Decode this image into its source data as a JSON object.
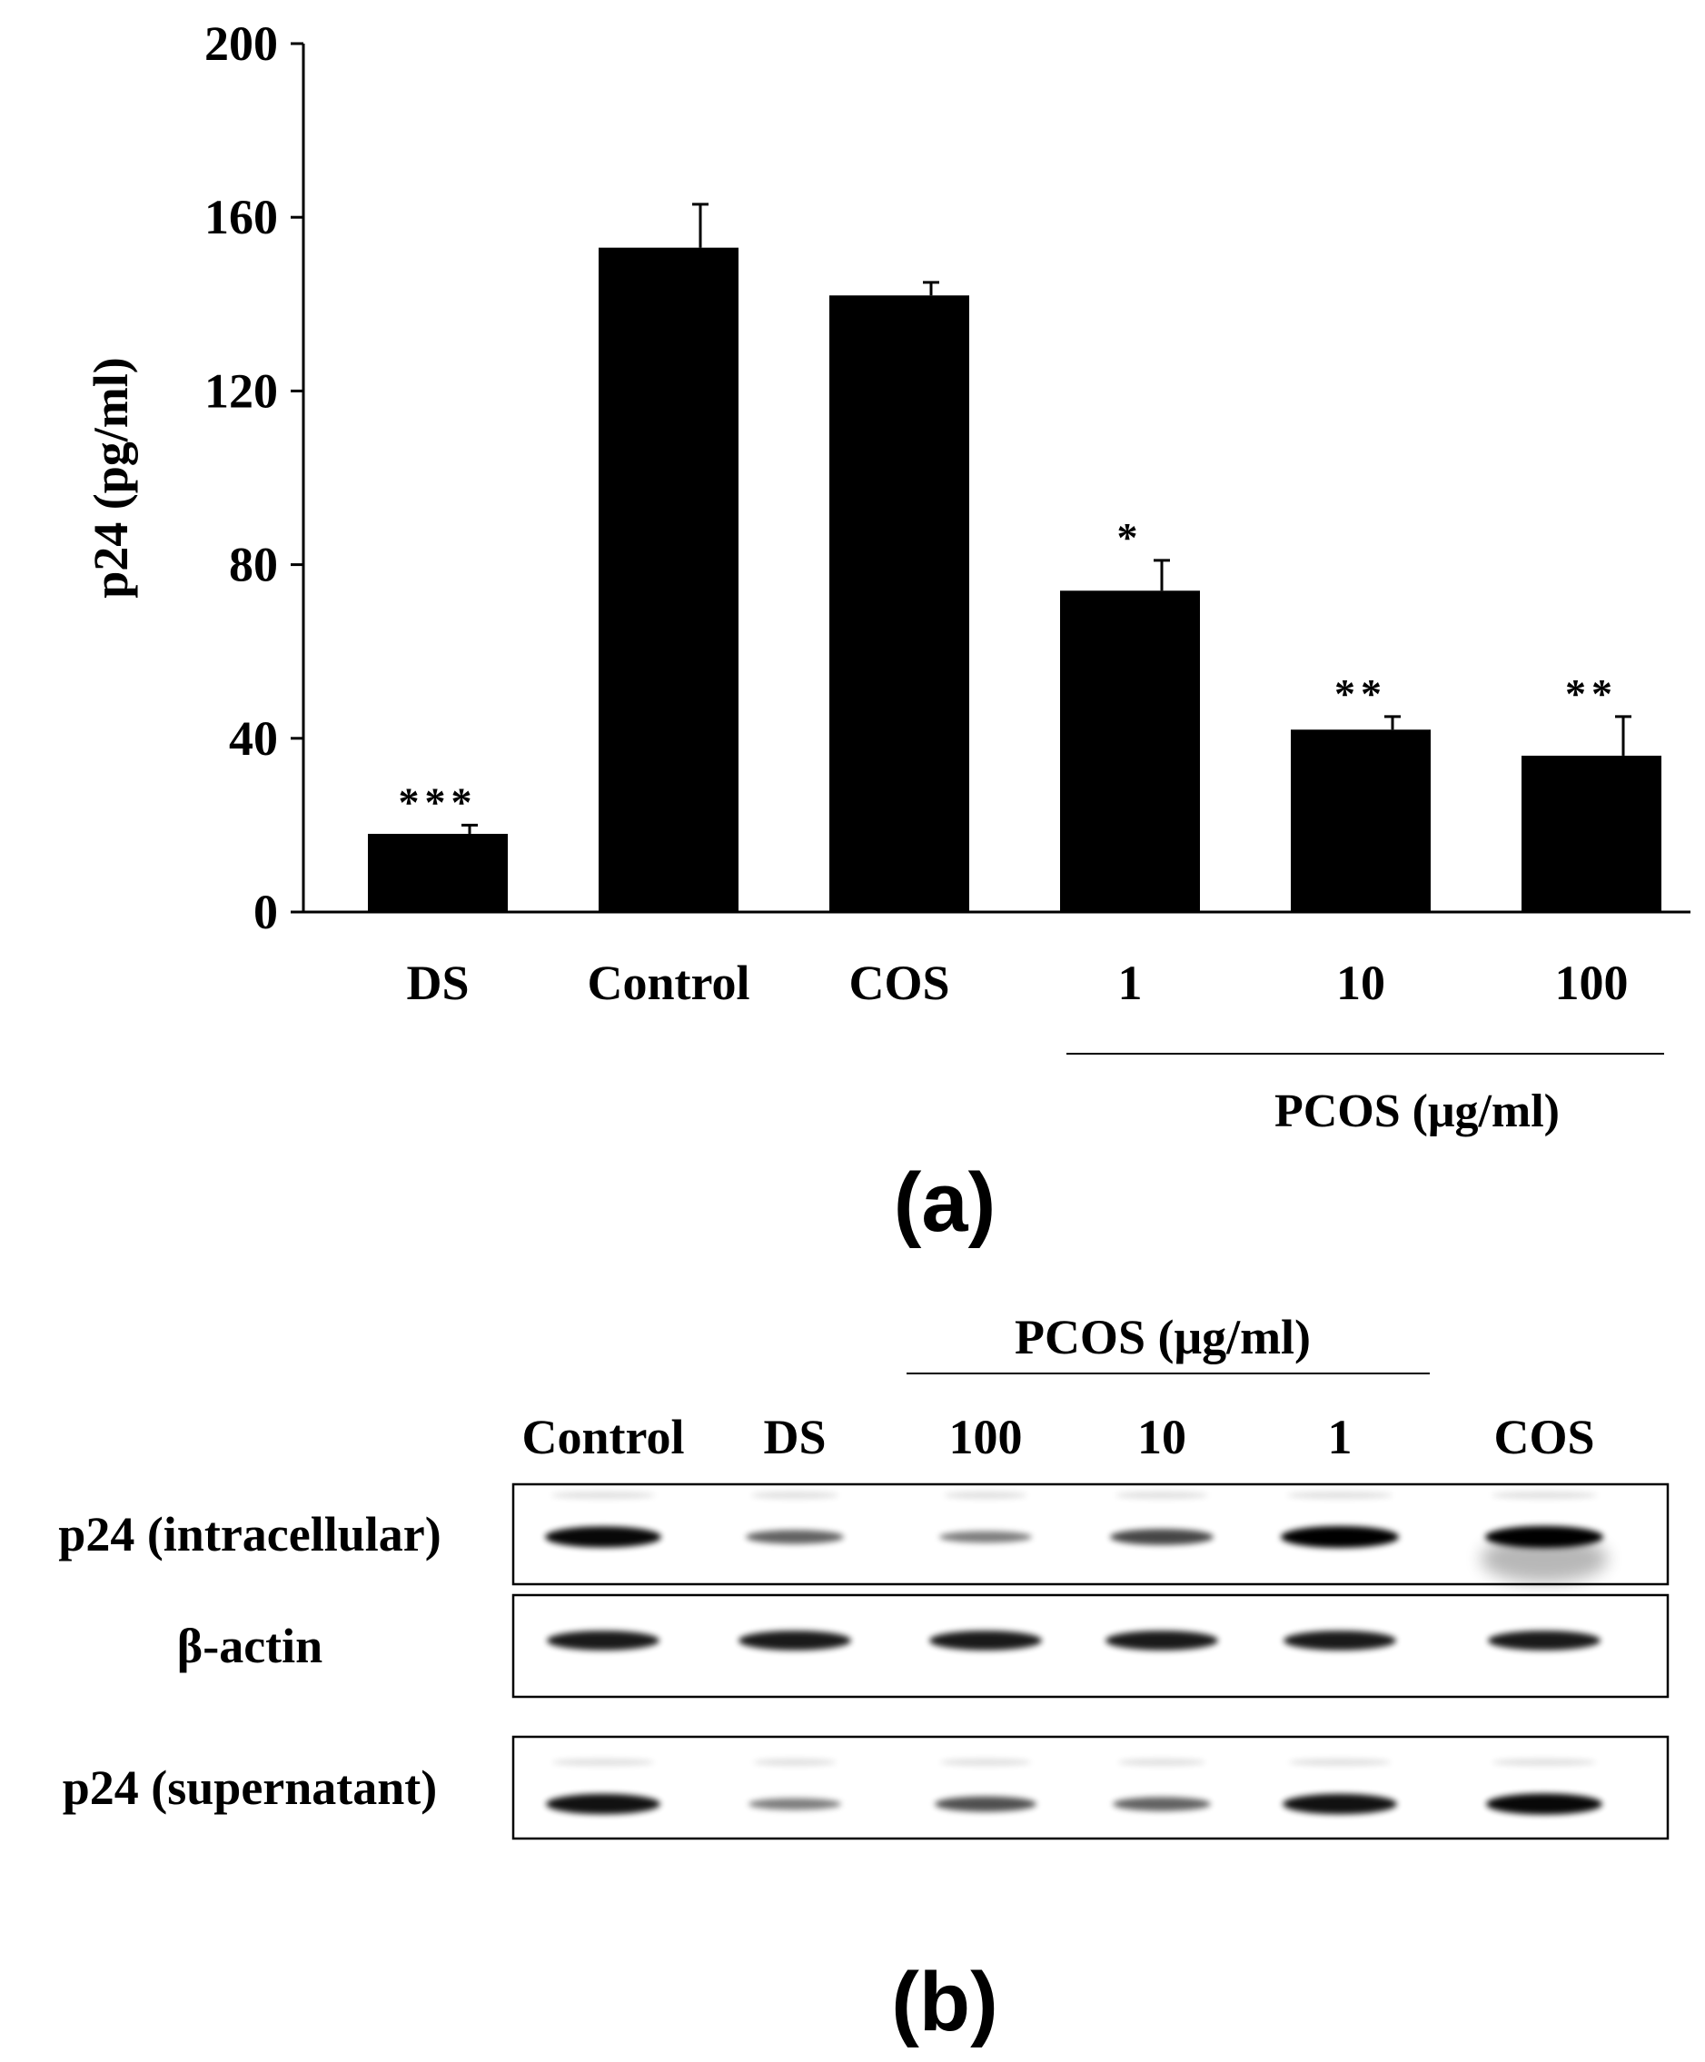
{
  "chart_data": {
    "type": "bar",
    "categories": [
      "DS",
      "Control",
      "COS",
      "1",
      "10",
      "100"
    ],
    "values": [
      18,
      153,
      142,
      74,
      42,
      36
    ],
    "errors": [
      2,
      10,
      3,
      7,
      3,
      9
    ],
    "significance": [
      "***",
      "",
      "",
      "*",
      "**",
      "**"
    ],
    "ylabel": "p24 (pg/ml)",
    "xlabel": "",
    "ylim": [
      0,
      200
    ],
    "yticks": [
      0,
      40,
      80,
      120,
      160,
      200
    ],
    "group_label": "PCOS (μg/ml)",
    "group_categories": [
      "1",
      "10",
      "100"
    ],
    "panel_label": "(a)",
    "bar_color": "#000000"
  },
  "blot": {
    "panel_label": "(b)",
    "group_label": "PCOS (μg/ml)",
    "lanes": [
      "Control",
      "DS",
      "100",
      "10",
      "1",
      "COS"
    ],
    "group_lanes": [
      "100",
      "10",
      "1"
    ],
    "rows": [
      {
        "label": "p24 (intracellular)",
        "intensities": [
          0.95,
          0.45,
          0.3,
          0.6,
          1.0,
          1.0
        ]
      },
      {
        "label": "β-actin",
        "intensities": [
          0.85,
          0.85,
          0.85,
          0.85,
          0.85,
          0.85
        ]
      },
      {
        "label": "p24 (supernatant)",
        "intensities": [
          0.9,
          0.3,
          0.55,
          0.45,
          0.9,
          0.95
        ]
      }
    ]
  }
}
